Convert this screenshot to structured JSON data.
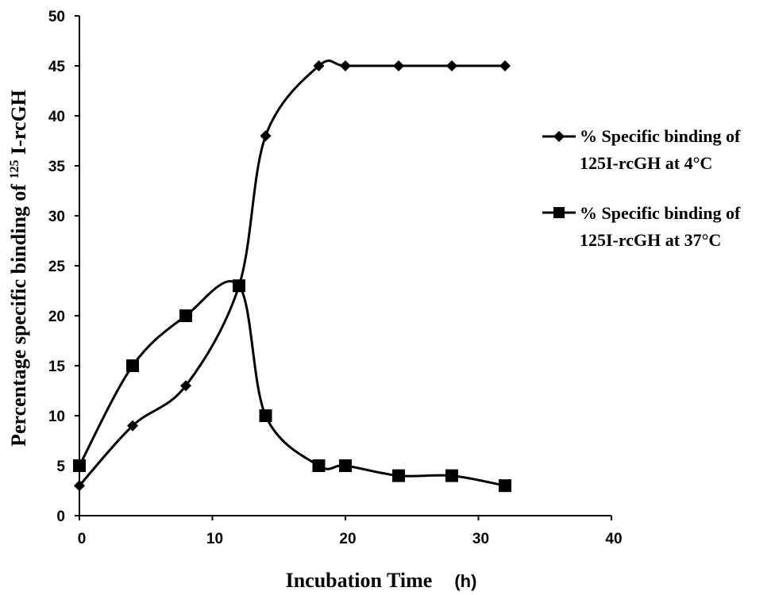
{
  "chart_data": {
    "type": "line",
    "ylabel": {
      "prefix": "Percentage specific binding of ",
      "superscript": "125",
      "suffix": " I-rcGH"
    },
    "xlabel": {
      "main": "Incubation Time",
      "unit": "(h)"
    },
    "xlim": [
      0,
      40
    ],
    "ylim": [
      0,
      50
    ],
    "x_ticks": [
      0,
      10,
      20,
      30,
      40
    ],
    "y_ticks": [
      0,
      5,
      10,
      15,
      20,
      25,
      30,
      35,
      40,
      45,
      50
    ],
    "grid": false,
    "legend_position": "right",
    "series": [
      {
        "name_line1": "% Specific binding of",
        "name_line2": "125I-rcGH at 4°C",
        "marker": "diamond",
        "color": "#000000",
        "x": [
          0,
          4,
          8,
          12,
          14,
          18,
          20,
          24,
          28,
          32
        ],
        "y": [
          3,
          9,
          13,
          23,
          38,
          45,
          45,
          45,
          45,
          45
        ]
      },
      {
        "name_line1": "% Specific binding of",
        "name_line2": "125I-rcGH at 37°C",
        "marker": "square",
        "color": "#000000",
        "x": [
          0,
          4,
          8,
          12,
          14,
          18,
          20,
          24,
          28,
          32
        ],
        "y": [
          5,
          15,
          20,
          23,
          10,
          5,
          5,
          4,
          4,
          3
        ]
      }
    ]
  }
}
